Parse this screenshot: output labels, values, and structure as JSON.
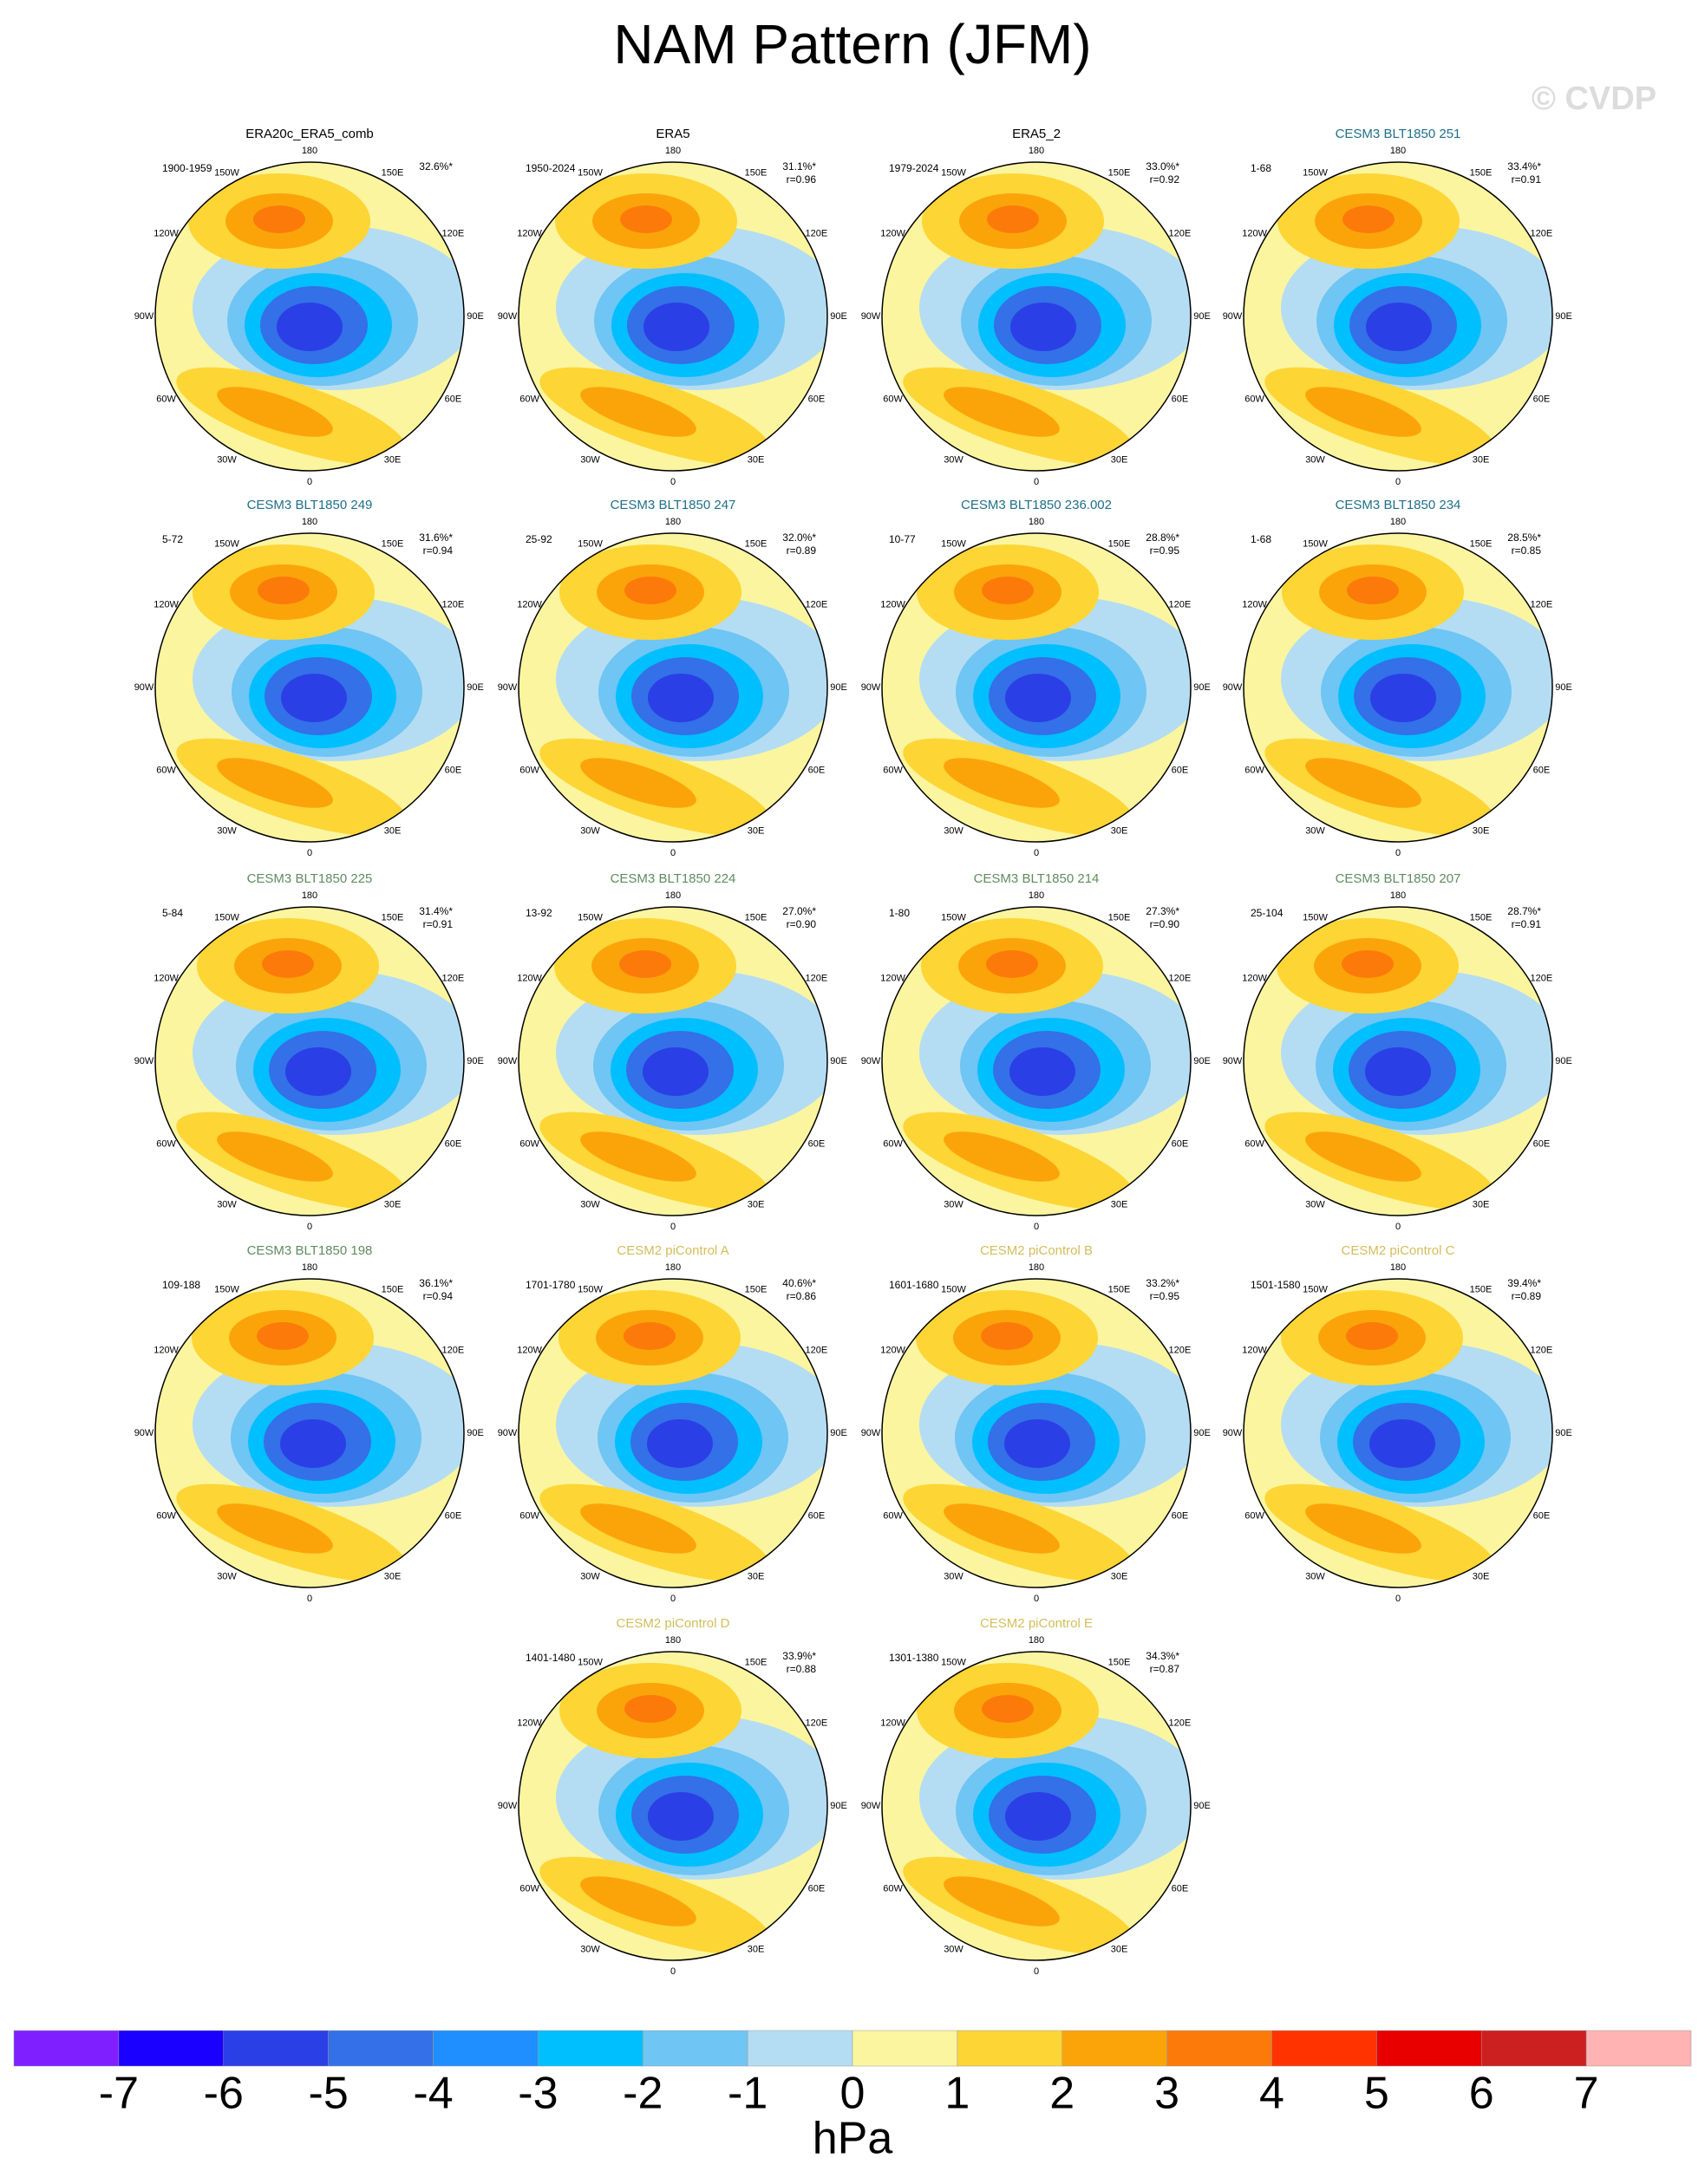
{
  "title": "NAM Pattern (JFM)",
  "credit": "© CVDP",
  "longitude_labels": [
    "0",
    "30E",
    "60E",
    "90E",
    "120E",
    "150E",
    "180",
    "150W",
    "120W",
    "90W",
    "60W",
    "30W"
  ],
  "panels": [
    {
      "title": "ERA20c_ERA5_comb",
      "color": "#000000",
      "period": "1900-1959",
      "variance": "32.6%*"
    },
    {
      "title": "ERA5",
      "color": "#000000",
      "period": "1950-2024",
      "variance": "31.1%*",
      "r": "r=0.96"
    },
    {
      "title": "ERA5_2",
      "color": "#000000",
      "period": "1979-2024",
      "variance": "33.0%*",
      "r": "r=0.92"
    },
    {
      "title": "CESM3 BLT1850 251",
      "color": "#1f6f8b",
      "period": "1-68",
      "variance": "33.4%*",
      "r": "r=0.91"
    },
    {
      "title": "CESM3 BLT1850 249",
      "color": "#1f6f8b",
      "period": "5-72",
      "variance": "31.6%*",
      "r": "r=0.94"
    },
    {
      "title": "CESM3 BLT1850 247",
      "color": "#1f6f8b",
      "period": "25-92",
      "variance": "32.0%*",
      "r": "r=0.89"
    },
    {
      "title": "CESM3 BLT1850 236.002",
      "color": "#1f6f8b",
      "period": "10-77",
      "variance": "28.8%*",
      "r": "r=0.95"
    },
    {
      "title": "CESM3 BLT1850 234",
      "color": "#1f6f8b",
      "period": "1-68",
      "variance": "28.5%*",
      "r": "r=0.85"
    },
    {
      "title": "CESM3 BLT1850 225",
      "color": "#5e8c5e",
      "period": "5-84",
      "variance": "31.4%*",
      "r": "r=0.91"
    },
    {
      "title": "CESM3 BLT1850 224",
      "color": "#5e8c5e",
      "period": "13-92",
      "variance": "27.0%*",
      "r": "r=0.90"
    },
    {
      "title": "CESM3 BLT1850 214",
      "color": "#5e8c5e",
      "period": "1-80",
      "variance": "27.3%*",
      "r": "r=0.90"
    },
    {
      "title": "CESM3 BLT1850 207",
      "color": "#5e8c5e",
      "period": "25-104",
      "variance": "28.7%*",
      "r": "r=0.91"
    },
    {
      "title": "CESM3 BLT1850 198",
      "color": "#5e8c5e",
      "period": "109-188",
      "variance": "36.1%*",
      "r": "r=0.94"
    },
    {
      "title": "CESM2 piControl A",
      "color": "#d4bd5a",
      "period": "1701-1780",
      "variance": "40.6%*",
      "r": "r=0.86"
    },
    {
      "title": "CESM2 piControl B",
      "color": "#d4bd5a",
      "period": "1601-1680",
      "variance": "33.2%*",
      "r": "r=0.95"
    },
    {
      "title": "CESM2 piControl C",
      "color": "#d4bd5a",
      "period": "1501-1580",
      "variance": "39.4%*",
      "r": "r=0.89"
    },
    {
      "title": "CESM2 piControl D",
      "color": "#d4bd5a",
      "period": "1401-1480",
      "variance": "33.9%*",
      "r": "r=0.88"
    },
    {
      "title": "CESM2 piControl E",
      "color": "#d4bd5a",
      "period": "1301-1380",
      "variance": "34.3%*",
      "r": "r=0.87"
    }
  ],
  "colorbar": {
    "levels": [
      -7,
      -6,
      -5,
      -4,
      -3,
      -2,
      -1,
      0,
      1,
      2,
      3,
      4,
      5,
      6,
      7
    ],
    "colors": [
      "#7f1fff",
      "#1a00ff",
      "#2b3fe6",
      "#3470e8",
      "#1f8fff",
      "#00bfff",
      "#6fc5f3",
      "#b4ddf3",
      "#fbf5a0",
      "#fdd535",
      "#fba40a",
      "#fc7a0a",
      "#fe3300",
      "#e80000",
      "#cc1f1f",
      "#ffb3b3"
    ],
    "label": "hPa"
  }
}
